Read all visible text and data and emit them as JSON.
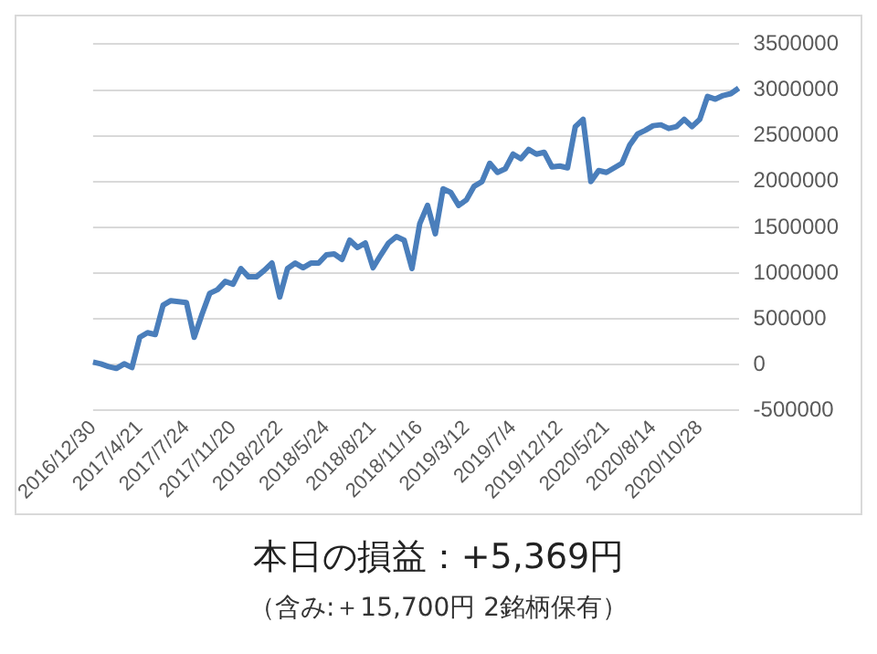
{
  "chart_data": {
    "type": "line",
    "title": "本日の損益：+5,369円",
    "subtitle": "（含み:＋15,700円  2銘柄保有）",
    "categories": [
      "2016/12/30",
      null,
      null,
      null,
      null,
      null,
      "2017/4/21",
      null,
      null,
      null,
      null,
      null,
      "2017/7/24",
      null,
      null,
      null,
      null,
      null,
      "2017/11/20",
      null,
      null,
      null,
      null,
      null,
      "2018/2/22",
      null,
      null,
      null,
      null,
      null,
      "2018/5/24",
      null,
      null,
      null,
      null,
      null,
      "2018/8/21",
      null,
      null,
      null,
      null,
      null,
      "2018/11/16",
      null,
      null,
      null,
      null,
      null,
      "2019/3/12",
      null,
      null,
      null,
      null,
      null,
      "2019/7/4",
      null,
      null,
      null,
      null,
      null,
      "2019/12/12",
      null,
      null,
      null,
      null,
      null,
      "2020/5/21",
      null,
      null,
      null,
      null,
      null,
      "2020/8/14",
      null,
      null,
      null,
      null,
      null,
      "2020/10/28",
      null,
      null,
      null,
      null,
      null
    ],
    "series": [
      {
        "color": "#4a7ebb",
        "values": [
          30000,
          10000,
          -20000,
          -40000,
          10000,
          -30000,
          300000,
          350000,
          330000,
          650000,
          700000,
          690000,
          680000,
          300000,
          550000,
          780000,
          820000,
          910000,
          880000,
          1050000,
          960000,
          960000,
          1030000,
          1110000,
          740000,
          1050000,
          1110000,
          1060000,
          1110000,
          1110000,
          1200000,
          1210000,
          1150000,
          1360000,
          1280000,
          1330000,
          1060000,
          1200000,
          1330000,
          1400000,
          1360000,
          1050000,
          1540000,
          1740000,
          1430000,
          1920000,
          1880000,
          1740000,
          1800000,
          1950000,
          2000000,
          2200000,
          2100000,
          2140000,
          2300000,
          2250000,
          2350000,
          2300000,
          2320000,
          2160000,
          2170000,
          2150000,
          2600000,
          2680000,
          2000000,
          2120000,
          2100000,
          2150000,
          2200000,
          2400000,
          2520000,
          2560000,
          2610000,
          2620000,
          2580000,
          2600000,
          2680000,
          2600000,
          2680000,
          2930000,
          2900000,
          2940000,
          2960000,
          3020000
        ]
      }
    ],
    "ylim": [
      -500000,
      3500000
    ],
    "yticks": [
      -500000,
      0,
      500000,
      1000000,
      1500000,
      2000000,
      2500000,
      3000000,
      3500000
    ],
    "grid": "y",
    "legend": false,
    "marker": "none",
    "line_style": "solid"
  }
}
